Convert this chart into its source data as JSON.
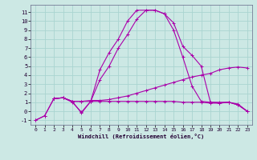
{
  "background_color": "#cce8e4",
  "grid_color": "#aad4d0",
  "line_color": "#aa00aa",
  "marker": "+",
  "xlabel": "Windchill (Refroidissement éolien,°C)",
  "xlim": [
    -0.5,
    23.5
  ],
  "ylim": [
    -1.5,
    11.8
  ],
  "xticks": [
    0,
    1,
    2,
    3,
    4,
    5,
    6,
    7,
    8,
    9,
    10,
    11,
    12,
    13,
    14,
    15,
    16,
    17,
    18,
    19,
    20,
    21,
    22,
    23
  ],
  "yticks": [
    -1,
    0,
    1,
    2,
    3,
    4,
    5,
    6,
    7,
    8,
    9,
    10,
    11
  ],
  "series": [
    {
      "x": [
        0,
        1,
        2,
        3,
        4,
        5,
        6,
        7,
        8,
        9,
        10,
        11,
        12,
        13,
        14,
        15,
        16,
        17,
        18,
        19,
        20,
        21,
        22,
        23
      ],
      "y": [
        -1.0,
        -0.5,
        1.4,
        1.5,
        1.1,
        -0.2,
        1.1,
        4.6,
        6.5,
        8.0,
        10.0,
        11.2,
        11.2,
        11.2,
        10.8,
        9.8,
        7.2,
        6.2,
        5.0,
        1.0,
        1.0,
        1.0,
        0.8,
        0.0
      ]
    },
    {
      "x": [
        0,
        1,
        2,
        3,
        4,
        5,
        6,
        7,
        8,
        9,
        10,
        11,
        12,
        13,
        14,
        15,
        16,
        17,
        18,
        19,
        20,
        21,
        22,
        23
      ],
      "y": [
        -1.0,
        -0.5,
        1.4,
        1.5,
        1.0,
        -0.1,
        1.1,
        3.5,
        5.0,
        7.0,
        8.5,
        10.2,
        11.2,
        11.2,
        10.8,
        9.0,
        6.0,
        2.8,
        1.1,
        1.0,
        0.9,
        1.0,
        0.7,
        0.0
      ]
    },
    {
      "x": [
        2,
        3,
        4,
        5,
        6,
        7,
        8,
        9,
        10,
        11,
        12,
        13,
        14,
        15,
        16,
        17,
        18,
        19,
        20,
        21,
        22,
        23
      ],
      "y": [
        1.4,
        1.5,
        1.1,
        1.1,
        1.2,
        1.2,
        1.3,
        1.5,
        1.7,
        2.0,
        2.3,
        2.6,
        2.9,
        3.2,
        3.5,
        3.8,
        4.0,
        4.2,
        4.6,
        4.8,
        4.9,
        4.8
      ]
    },
    {
      "x": [
        2,
        3,
        4,
        5,
        6,
        7,
        8,
        9,
        10,
        11,
        12,
        13,
        14,
        15,
        16,
        17,
        18,
        19,
        20,
        21,
        22,
        23
      ],
      "y": [
        1.4,
        1.5,
        1.1,
        1.1,
        1.1,
        1.1,
        1.1,
        1.1,
        1.1,
        1.1,
        1.1,
        1.1,
        1.1,
        1.1,
        1.0,
        1.0,
        1.0,
        0.9,
        0.9,
        1.0,
        0.7,
        0.0
      ]
    }
  ]
}
